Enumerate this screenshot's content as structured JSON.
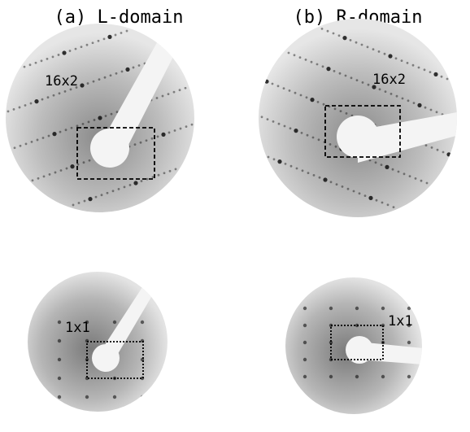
{
  "panels": [
    {
      "title": "(a) L-domain",
      "top_label": "16x2",
      "bottom_label": "1x1"
    },
    {
      "title": "(b) R-domain",
      "top_label": "16x2",
      "bottom_label": "1x1"
    }
  ]
}
